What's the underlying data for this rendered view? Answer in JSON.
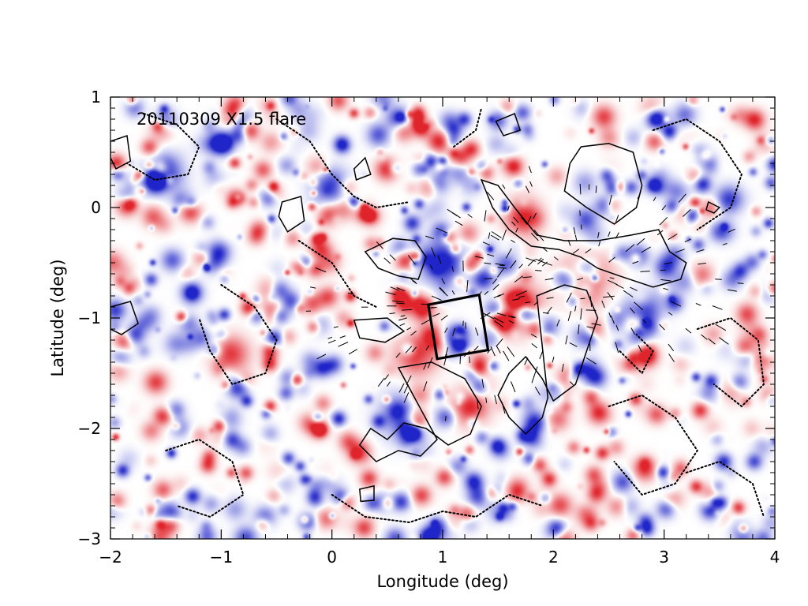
{
  "chart_data": {
    "type": "heatmap",
    "title": "",
    "annotation": "20110309 X1.5 flare",
    "xlabel": "Longitude (deg)",
    "ylabel": "Latitude (deg)",
    "xlim": [
      -2,
      4
    ],
    "ylim": [
      -3,
      1
    ],
    "x_ticks": [
      -2,
      -1,
      0,
      1,
      2,
      3,
      4
    ],
    "y_ticks": [
      -3,
      -2,
      -1,
      0,
      1
    ],
    "x_tick_labels": [
      "−2",
      "−1",
      "0",
      "1",
      "2",
      "3",
      "4"
    ],
    "y_tick_labels": [
      "−3",
      "−2",
      "−1",
      "0",
      "1"
    ],
    "colormap": {
      "positive": "#e0242b",
      "negative": "#1f25c8",
      "zero": "#ffffff"
    },
    "grid": false,
    "legend": "none",
    "box": {
      "corners": [
        [
          0.87,
          -0.88
        ],
        [
          1.33,
          -0.79
        ],
        [
          1.41,
          -1.29
        ],
        [
          0.95,
          -1.37
        ]
      ]
    },
    "solid_contours": [
      [
        [
          2.25,
          0.55
        ],
        [
          2.5,
          0.58
        ],
        [
          2.72,
          0.5
        ],
        [
          2.8,
          0.2
        ],
        [
          2.75,
          0.0
        ],
        [
          2.55,
          -0.15
        ],
        [
          2.3,
          0.0
        ],
        [
          2.1,
          0.15
        ],
        [
          2.15,
          0.4
        ]
      ],
      [
        [
          1.35,
          0.25
        ],
        [
          1.5,
          0.2
        ],
        [
          1.65,
          0.0
        ],
        [
          1.85,
          -0.25
        ],
        [
          2.1,
          -0.3
        ],
        [
          2.4,
          -0.3
        ],
        [
          2.7,
          -0.25
        ],
        [
          2.95,
          -0.2
        ],
        [
          3.05,
          -0.4
        ],
        [
          3.2,
          -0.5
        ],
        [
          3.15,
          -0.65
        ],
        [
          2.9,
          -0.72
        ],
        [
          2.6,
          -0.62
        ],
        [
          2.4,
          -0.55
        ],
        [
          2.25,
          -0.45
        ],
        [
          2.05,
          -0.38
        ],
        [
          1.8,
          -0.35
        ],
        [
          1.6,
          -0.2
        ],
        [
          1.45,
          0.0
        ]
      ],
      [
        [
          0.3,
          -0.4
        ],
        [
          0.55,
          -0.28
        ],
        [
          0.75,
          -0.3
        ],
        [
          0.85,
          -0.45
        ],
        [
          0.78,
          -0.65
        ],
        [
          0.6,
          -0.62
        ],
        [
          0.42,
          -0.55
        ]
      ],
      [
        [
          1.85,
          -0.8
        ],
        [
          2.1,
          -0.7
        ],
        [
          2.3,
          -0.75
        ],
        [
          2.4,
          -1.0
        ],
        [
          2.3,
          -1.3
        ],
        [
          2.2,
          -1.6
        ],
        [
          2.0,
          -1.75
        ],
        [
          1.9,
          -1.55
        ],
        [
          1.75,
          -1.35
        ],
        [
          1.6,
          -1.5
        ],
        [
          1.5,
          -1.7
        ],
        [
          1.6,
          -1.9
        ],
        [
          1.75,
          -2.05
        ],
        [
          1.9,
          -1.9
        ],
        [
          1.95,
          -1.72
        ]
      ],
      [
        [
          0.6,
          -1.45
        ],
        [
          0.9,
          -1.4
        ],
        [
          1.2,
          -1.55
        ],
        [
          1.35,
          -1.8
        ],
        [
          1.25,
          -2.05
        ],
        [
          1.05,
          -2.15
        ],
        [
          0.85,
          -2.0
        ],
        [
          0.65,
          -1.95
        ],
        [
          0.5,
          -2.1
        ],
        [
          0.35,
          -2.0
        ],
        [
          0.25,
          -2.15
        ],
        [
          0.4,
          -2.3
        ],
        [
          0.6,
          -2.2
        ],
        [
          0.8,
          -2.25
        ],
        [
          0.95,
          -2.1
        ]
      ],
      [
        [
          0.2,
          -1.02
        ],
        [
          0.5,
          -1.0
        ],
        [
          0.65,
          -1.12
        ],
        [
          0.48,
          -1.22
        ],
        [
          0.25,
          -1.18
        ]
      ],
      [
        [
          -2.0,
          -0.9
        ],
        [
          -1.82,
          -0.85
        ],
        [
          -1.75,
          -1.05
        ],
        [
          -1.9,
          -1.15
        ],
        [
          -2.0,
          -1.1
        ]
      ],
      [
        [
          -2.0,
          0.6
        ],
        [
          -1.85,
          0.65
        ],
        [
          -1.82,
          0.42
        ],
        [
          -1.95,
          0.35
        ],
        [
          -2.0,
          0.45
        ]
      ],
      [
        [
          -0.45,
          0.05
        ],
        [
          -0.28,
          0.1
        ],
        [
          -0.25,
          -0.12
        ],
        [
          -0.4,
          -0.22
        ],
        [
          -0.48,
          -0.08
        ]
      ],
      [
        [
          1.48,
          0.78
        ],
        [
          1.65,
          0.85
        ],
        [
          1.7,
          0.7
        ],
        [
          1.55,
          0.65
        ]
      ],
      [
        [
          0.2,
          0.35
        ],
        [
          0.3,
          0.45
        ],
        [
          0.35,
          0.3
        ],
        [
          0.22,
          0.25
        ]
      ],
      [
        [
          3.4,
          0.05
        ],
        [
          3.5,
          0.0
        ],
        [
          3.45,
          -0.05
        ],
        [
          3.38,
          -0.02
        ]
      ],
      [
        [
          0.25,
          -2.55
        ],
        [
          0.38,
          -2.52
        ],
        [
          0.38,
          -2.65
        ],
        [
          0.26,
          -2.66
        ]
      ]
    ],
    "dotted_contours": [
      [
        [
          -1.7,
          0.85
        ],
        [
          -1.4,
          0.75
        ],
        [
          -1.2,
          0.55
        ],
        [
          -1.3,
          0.3
        ],
        [
          -1.6,
          0.25
        ],
        [
          -1.85,
          0.4
        ]
      ],
      [
        [
          -0.5,
          0.8
        ],
        [
          -0.2,
          0.6
        ],
        [
          0.0,
          0.3
        ],
        [
          0.2,
          0.1
        ],
        [
          0.4,
          0.0
        ],
        [
          0.7,
          0.05
        ]
      ],
      [
        [
          2.9,
          0.7
        ],
        [
          3.2,
          0.8
        ],
        [
          3.5,
          0.6
        ],
        [
          3.7,
          0.3
        ],
        [
          3.6,
          0.0
        ],
        [
          3.3,
          -0.2
        ]
      ],
      [
        [
          -1.0,
          -0.7
        ],
        [
          -0.7,
          -0.9
        ],
        [
          -0.5,
          -1.2
        ],
        [
          -0.6,
          -1.5
        ],
        [
          -0.9,
          -1.6
        ],
        [
          -1.1,
          -1.3
        ],
        [
          -1.2,
          -1.0
        ]
      ],
      [
        [
          2.5,
          -1.8
        ],
        [
          2.8,
          -1.7
        ],
        [
          3.1,
          -1.9
        ],
        [
          3.3,
          -2.2
        ],
        [
          3.1,
          -2.5
        ],
        [
          2.8,
          -2.6
        ],
        [
          2.55,
          -2.3
        ]
      ],
      [
        [
          -1.5,
          -2.2
        ],
        [
          -1.2,
          -2.1
        ],
        [
          -0.9,
          -2.3
        ],
        [
          -0.8,
          -2.6
        ],
        [
          -1.1,
          -2.8
        ],
        [
          -1.4,
          -2.7
        ]
      ],
      [
        [
          3.3,
          -1.1
        ],
        [
          3.6,
          -1.0
        ],
        [
          3.85,
          -1.2
        ],
        [
          3.9,
          -1.6
        ],
        [
          3.7,
          -1.8
        ],
        [
          3.45,
          -1.6
        ]
      ],
      [
        [
          0.0,
          -2.6
        ],
        [
          0.3,
          -2.8
        ],
        [
          0.7,
          -2.85
        ],
        [
          1.0,
          -2.75
        ],
        [
          1.3,
          -2.8
        ],
        [
          1.6,
          -2.6
        ],
        [
          1.9,
          -2.7
        ]
      ],
      [
        [
          3.2,
          -2.4
        ],
        [
          3.5,
          -2.3
        ],
        [
          3.8,
          -2.5
        ],
        [
          3.9,
          -2.8
        ]
      ],
      [
        [
          -0.3,
          -0.3
        ],
        [
          0.0,
          -0.5
        ],
        [
          0.2,
          -0.8
        ],
        [
          0.4,
          -0.9
        ]
      ],
      [
        [
          1.1,
          0.55
        ],
        [
          1.3,
          0.7
        ],
        [
          1.35,
          0.9
        ]
      ],
      [
        [
          2.6,
          -1.3
        ],
        [
          2.8,
          -1.5
        ],
        [
          2.9,
          -1.3
        ],
        [
          2.75,
          -1.15
        ]
      ]
    ]
  }
}
